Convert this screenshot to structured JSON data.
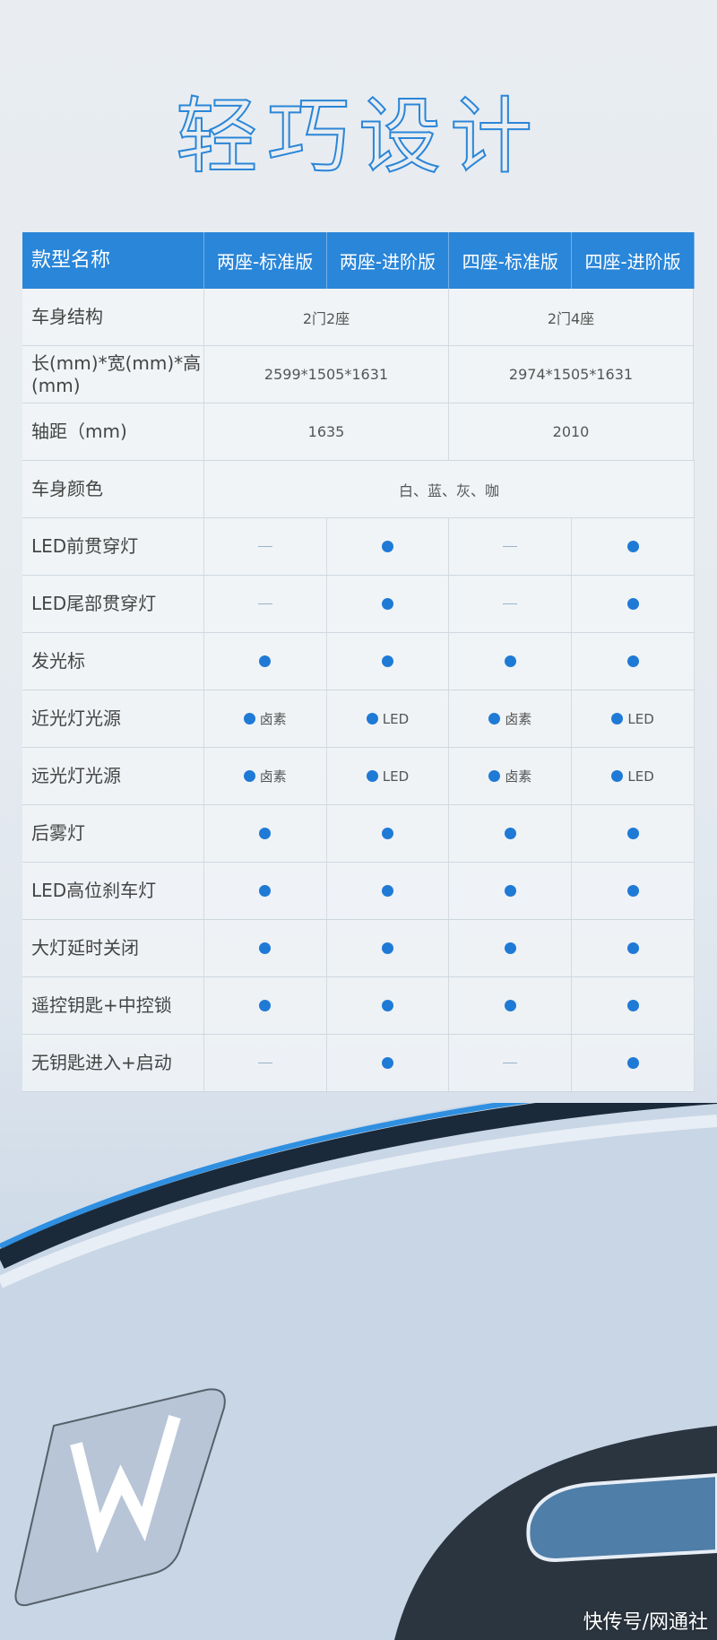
{
  "title": "轻巧设计",
  "table": {
    "header": [
      "款型名称",
      "两座-标准版",
      "两座-进阶版",
      "四座-标准版",
      "四座-进阶版"
    ],
    "merged_rows": [
      {
        "label": "车身结构",
        "values": [
          "2门2座",
          "2门4座"
        ]
      },
      {
        "label": "长(mm)*宽(mm)*高(mm)",
        "values": [
          "2599*1505*1631",
          "2974*1505*1631"
        ]
      },
      {
        "label": "轴距（mm)",
        "values": [
          "1635",
          "2010"
        ]
      },
      {
        "label": "车身颜色",
        "values": [
          "白、蓝、灰、咖"
        ]
      }
    ],
    "feature_rows": [
      {
        "label": "LED前贯穿灯",
        "values": [
          [
            "no",
            ""
          ],
          [
            "yes",
            ""
          ],
          [
            "no",
            ""
          ],
          [
            "yes",
            ""
          ]
        ]
      },
      {
        "label": "LED尾部贯穿灯",
        "values": [
          [
            "no",
            ""
          ],
          [
            "yes",
            ""
          ],
          [
            "no",
            ""
          ],
          [
            "yes",
            ""
          ]
        ]
      },
      {
        "label": "发光标",
        "values": [
          [
            "yes",
            ""
          ],
          [
            "yes",
            ""
          ],
          [
            "yes",
            ""
          ],
          [
            "yes",
            ""
          ]
        ]
      },
      {
        "label": "近光灯光源",
        "values": [
          [
            "yes",
            "卤素"
          ],
          [
            "yes",
            "LED"
          ],
          [
            "yes",
            "卤素"
          ],
          [
            "yes",
            "LED"
          ]
        ]
      },
      {
        "label": "远光灯光源",
        "values": [
          [
            "yes",
            "卤素"
          ],
          [
            "yes",
            "LED"
          ],
          [
            "yes",
            "卤素"
          ],
          [
            "yes",
            "LED"
          ]
        ]
      },
      {
        "label": "后雾灯",
        "values": [
          [
            "yes",
            ""
          ],
          [
            "yes",
            ""
          ],
          [
            "yes",
            ""
          ],
          [
            "yes",
            ""
          ]
        ]
      },
      {
        "label": "LED高位刹车灯",
        "values": [
          [
            "yes",
            ""
          ],
          [
            "yes",
            ""
          ],
          [
            "yes",
            ""
          ],
          [
            "yes",
            ""
          ]
        ]
      },
      {
        "label": "大灯延时关闭",
        "values": [
          [
            "yes",
            ""
          ],
          [
            "yes",
            ""
          ],
          [
            "yes",
            ""
          ],
          [
            "yes",
            ""
          ]
        ]
      },
      {
        "label": "遥控钥匙+中控锁",
        "values": [
          [
            "yes",
            ""
          ],
          [
            "yes",
            ""
          ],
          [
            "yes",
            ""
          ],
          [
            "yes",
            ""
          ]
        ]
      },
      {
        "label": "无钥匙进入+启动",
        "values": [
          [
            "no",
            ""
          ],
          [
            "yes",
            ""
          ],
          [
            "no",
            ""
          ],
          [
            "yes",
            ""
          ]
        ]
      }
    ]
  },
  "watermark": "快传号/网通社",
  "colors": {
    "accent": "#2a86d8",
    "dot": "#1f7ad6"
  }
}
